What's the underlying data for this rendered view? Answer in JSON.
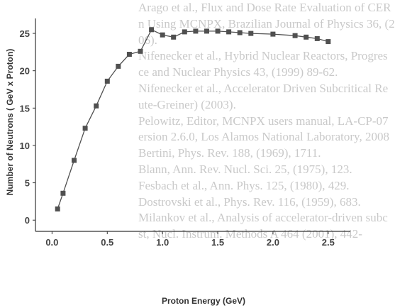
{
  "chart_data": {
    "type": "line",
    "title": "",
    "xlabel": "Proton Energy (GeV)",
    "ylabel": "Number of Neutrons ( GeV x Proton)",
    "xlim": [
      -0.15,
      2.7
    ],
    "ylim": [
      -1.5,
      27
    ],
    "xticks": [
      0.0,
      0.5,
      1.0,
      1.5,
      2.0,
      2.5
    ],
    "xtick_labels": [
      "0.0",
      "0.5",
      "1.0",
      "1.5",
      "2.0",
      "2.5"
    ],
    "yticks": [
      0,
      5,
      10,
      15,
      20,
      25
    ],
    "ytick_labels": [
      "0",
      "5",
      "10",
      "15",
      "20",
      "25"
    ],
    "grid": false,
    "legend": "none",
    "marker": "square",
    "color": "#505050",
    "x": [
      0.05,
      0.1,
      0.2,
      0.3,
      0.4,
      0.5,
      0.6,
      0.7,
      0.8,
      0.9,
      1.0,
      1.1,
      1.2,
      1.3,
      1.4,
      1.5,
      1.6,
      1.7,
      1.8,
      2.0,
      2.2,
      2.3,
      2.4,
      2.5
    ],
    "y": [
      1.5,
      3.6,
      8.0,
      12.3,
      15.3,
      18.6,
      20.6,
      22.2,
      22.6,
      25.5,
      24.8,
      24.5,
      25.2,
      25.3,
      25.3,
      25.3,
      25.2,
      25.1,
      25.0,
      24.9,
      24.7,
      24.5,
      24.3,
      23.9
    ]
  },
  "background_text": [
    "Arago et al., Flux and Dose Rate Evaluation of CER",
    "n Using MCNPX, Brazilian Journal of Physics 36, (2",
    "06).",
    "Nifenecker et al., Hybrid Nuclear Reactors, Progres",
    "ce and Nuclear Physics 43, (1999) 89-62.",
    "Nifenecker et al., Accelerator Driven Subcritical Re",
    "ute-Greiner) (2003).",
    "Pelowitz, Editor, MCNPX users manual, LA-CP-07",
    "ersion 2.6.0, Los Alamos National Laboratory, 2008",
    "Bertini, Phys. Rev. 188, (1969), 1711.",
    "Blann, Ann. Rev. Nucl. Sci. 25, (1975), 123.",
    "Fesbach et al., Ann. Phys. 125, (1980), 429.",
    "Dostrovski et al., Phys. Rev. 116, (1959), 683.",
    "Milankov et al., Analysis of accelerator-driven subc",
    "st, Nucl. Instrum. Methods A 464 (2001), 442-"
  ]
}
